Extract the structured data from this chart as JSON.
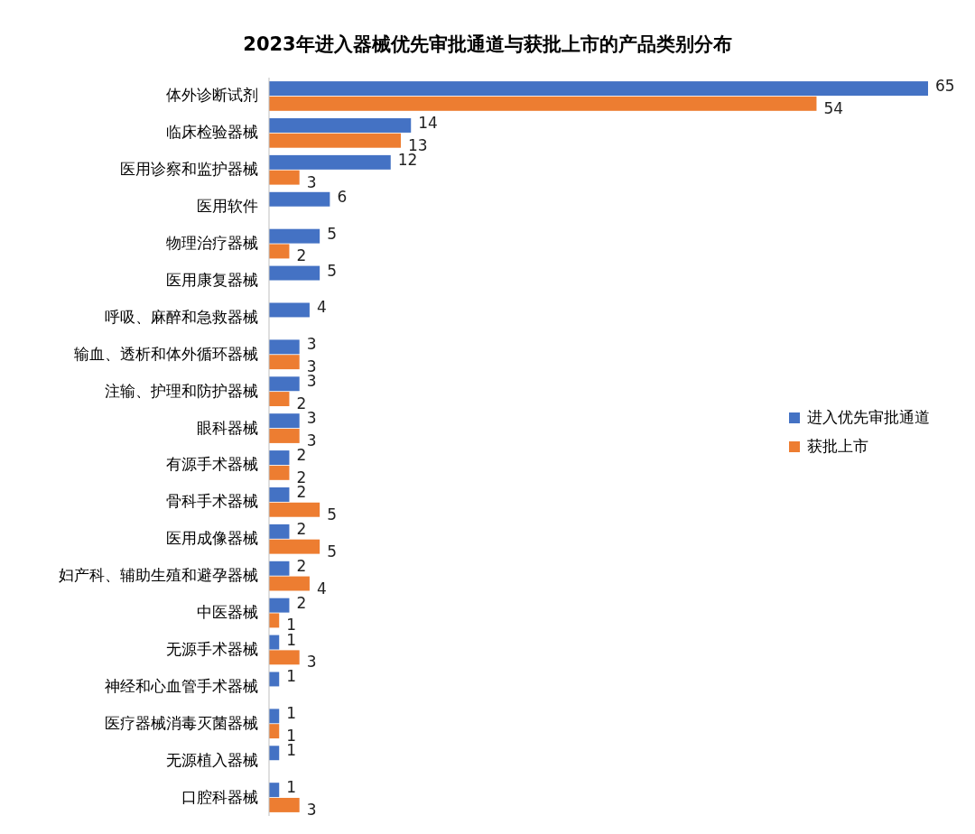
{
  "chart_data": {
    "type": "bar",
    "orientation": "horizontal",
    "title": "2023年进入器械优先审批通道与获批上市的产品类别分布",
    "categories": [
      "体外诊断试剂",
      "临床检验器械",
      "医用诊察和监护器械",
      "医用软件",
      "物理治疗器械",
      "医用康复器械",
      "呼吸、麻醉和急救器械",
      "输血、透析和体外循环器械",
      "注输、护理和防护器械",
      "眼科器械",
      "有源手术器械",
      "骨科手术器械",
      "医用成像器械",
      "妇产科、辅助生殖和避孕器械",
      "中医器械",
      "无源手术器械",
      "神经和心血管手术器械",
      "医疗器械消毒灭菌器械",
      "无源植入器械",
      "口腔科器械"
    ],
    "series": [
      {
        "name": "进入优先审批通道",
        "color": "#4472c4",
        "values": [
          65,
          14,
          12,
          6,
          5,
          5,
          4,
          3,
          3,
          3,
          2,
          2,
          2,
          2,
          2,
          1,
          1,
          1,
          1,
          1
        ]
      },
      {
        "name": "获批上市",
        "color": "#ed7d31",
        "values": [
          54,
          13,
          3,
          null,
          2,
          null,
          null,
          3,
          2,
          3,
          2,
          5,
          5,
          4,
          1,
          3,
          null,
          1,
          null,
          3
        ]
      }
    ],
    "data_labels": true,
    "legend": "right",
    "grid": false
  }
}
